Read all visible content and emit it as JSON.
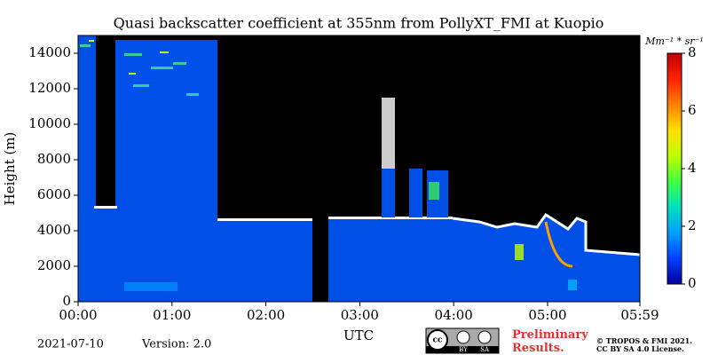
{
  "chart_data": {
    "type": "heatmap",
    "title": "Quasi backscatter coefficient at 355nm from PollyXT_FMI at Kuopio",
    "x_label": "UTC",
    "y_label": "Height (m)",
    "xlim": [
      0,
      359
    ],
    "xticks": [
      {
        "value": 0,
        "label": "00:00"
      },
      {
        "value": 60,
        "label": "01:00"
      },
      {
        "value": 120,
        "label": "02:00"
      },
      {
        "value": 180,
        "label": "03:00"
      },
      {
        "value": 240,
        "label": "04:00"
      },
      {
        "value": 300,
        "label": "05:00"
      },
      {
        "value": 359,
        "label": "05:59"
      }
    ],
    "ylim": [
      0,
      15000
    ],
    "yticks": [
      0,
      2000,
      4000,
      6000,
      8000,
      10000,
      12000,
      14000
    ],
    "colorbar": {
      "label": "Mm⁻¹ * sr⁻¹",
      "lim": [
        0,
        8
      ],
      "ticks": [
        0,
        2,
        4,
        6,
        8
      ],
      "colors": [
        "#0000a0",
        "#0040ff",
        "#00a0ff",
        "#00e0c0",
        "#40ff40",
        "#c0ff00",
        "#ffe000",
        "#ff8000",
        "#ff2000",
        "#c00000"
      ]
    },
    "date": "2021-07-10",
    "version": "Version: 2.0",
    "badge": {
      "by": "BY",
      "sa": "SA"
    },
    "preliminary": "Preliminary Results.",
    "copyright": [
      "© TROPOS & FMI 2021.",
      "CC BY SA 4.0 License."
    ]
  }
}
